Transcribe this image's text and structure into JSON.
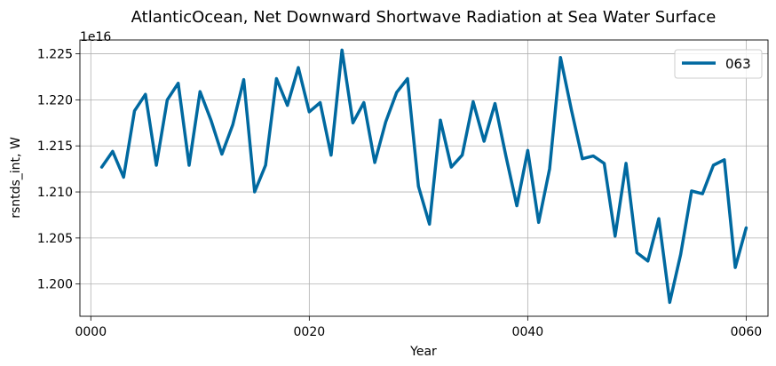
{
  "chart_data": {
    "type": "line",
    "title": "AtlanticOcean, Net Downward Shortwave Radiation at Sea Water Surface",
    "xlabel": "Year",
    "ylabel": "rsntds_int, W",
    "y_offset_label": "1e16",
    "xlim": [
      -1,
      62
    ],
    "ylim": [
      1.1965,
      1.2265
    ],
    "grid": true,
    "legend_position": "top-right",
    "x_ticks": [
      0,
      20,
      40,
      60
    ],
    "x_tick_labels": [
      "0000",
      "0020",
      "0040",
      "0060"
    ],
    "y_ticks": [
      1.2,
      1.205,
      1.21,
      1.215,
      1.22,
      1.225
    ],
    "y_tick_labels": [
      "1.200",
      "1.205",
      "1.210",
      "1.215",
      "1.220",
      "1.225"
    ],
    "series": [
      {
        "name": "063",
        "color": "#0069a0",
        "x": [
          1,
          2,
          3,
          4,
          5,
          6,
          7,
          8,
          9,
          10,
          11,
          12,
          13,
          14,
          15,
          16,
          17,
          18,
          19,
          20,
          21,
          22,
          23,
          24,
          25,
          26,
          27,
          28,
          29,
          30,
          31,
          32,
          33,
          34,
          35,
          36,
          37,
          38,
          39,
          40,
          41,
          42,
          43,
          44,
          45,
          46,
          47,
          48,
          49,
          50,
          51,
          52,
          53,
          54,
          55,
          56,
          57,
          58,
          59,
          60
        ],
        "values": [
          1.2127,
          1.2144,
          1.2116,
          1.2188,
          1.2206,
          1.2129,
          1.22,
          1.2218,
          1.2129,
          1.2209,
          1.2178,
          1.2141,
          1.2173,
          1.2222,
          1.21,
          1.2129,
          1.2223,
          1.2194,
          1.2235,
          1.2187,
          1.2197,
          1.214,
          1.2254,
          1.2175,
          1.2197,
          1.2132,
          1.2176,
          1.2208,
          1.2223,
          1.2106,
          1.2065,
          1.2178,
          1.2127,
          1.214,
          1.2198,
          1.2155,
          1.2196,
          1.2139,
          1.2085,
          1.2145,
          1.2067,
          1.2125,
          1.2246,
          1.2189,
          1.2136,
          1.2139,
          1.2131,
          1.2052,
          1.2131,
          1.2034,
          1.2025,
          1.2071,
          1.198,
          1.2032,
          1.2101,
          1.2098,
          1.2129,
          1.2135,
          1.2018,
          1.2061
        ]
      }
    ]
  }
}
